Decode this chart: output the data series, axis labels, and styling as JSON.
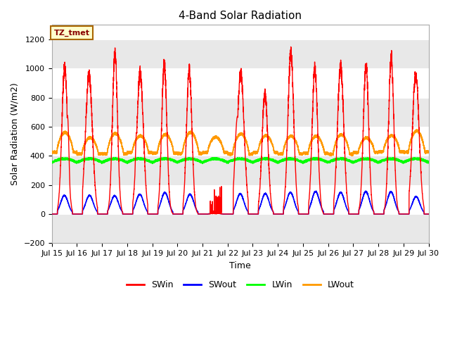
{
  "title": "4-Band Solar Radiation",
  "xlabel": "Time",
  "ylabel": "Solar Radiation (W/m2)",
  "ylim": [
    -200,
    1300
  ],
  "xlim": [
    0,
    15
  ],
  "yticks": [
    -200,
    0,
    200,
    400,
    600,
    800,
    1000,
    1200
  ],
  "xtick_labels": [
    "Jul 15",
    "Jul 16",
    "Jul 17",
    "Jul 18",
    "Jul 19",
    "Jul 20",
    "Jul 21",
    "Jul 22",
    "Jul 23",
    "Jul 24",
    "Jul 25",
    "Jul 26",
    "Jul 27",
    "Jul 28",
    "Jul 29",
    "Jul 30"
  ],
  "annotation_text": "TZ_tmet",
  "annotation_bg": "#ffffcc",
  "annotation_border": "#aa6600",
  "colors": {
    "SWin": "#ff0000",
    "SWout": "#0000ff",
    "LWin": "#00ff00",
    "LWout": "#ff9900"
  },
  "band_color": "#e8e8e8",
  "band_ranges": [
    [
      -200,
      0
    ],
    [
      200,
      400
    ],
    [
      600,
      800
    ],
    [
      1000,
      1200
    ]
  ],
  "legend_entries": [
    "SWin",
    "SWout",
    "LWin",
    "LWout"
  ]
}
